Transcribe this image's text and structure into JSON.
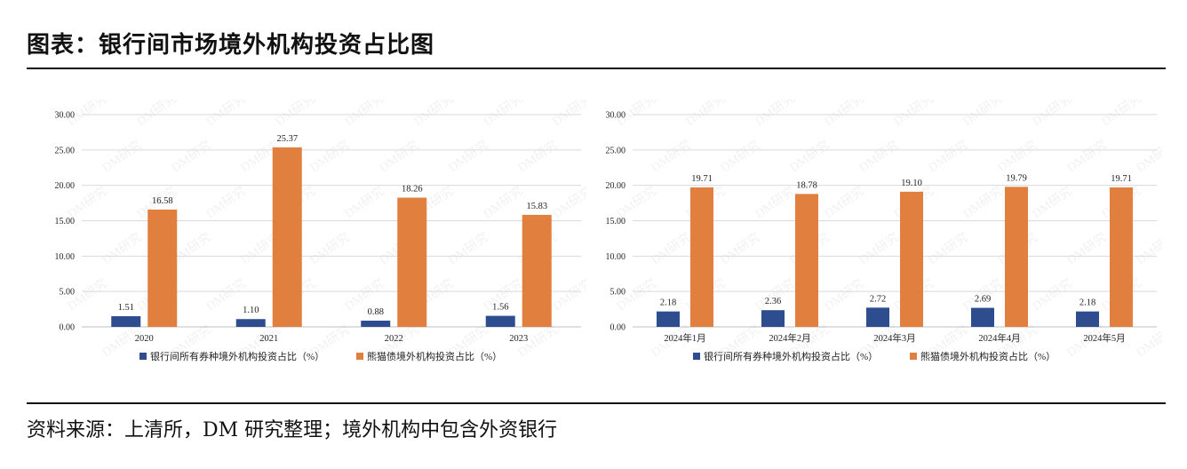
{
  "title": "图表：银行间市场境外机构投资占比图",
  "source": "资料来源：上清所，DM 研究整理；境外机构中包含外资银行",
  "watermark": "DM研究",
  "colors": {
    "series1": "#2e4d8f",
    "series2": "#e07f3e",
    "grid": "#d9d9d9",
    "axis": "#bfbfbf"
  },
  "chart_data": [
    {
      "type": "bar",
      "categories": [
        "2020",
        "2021",
        "2022",
        "2023"
      ],
      "series": [
        {
          "name": "银行间所有券种境外机构投资占比（%）",
          "values": [
            1.51,
            1.1,
            0.88,
            1.56
          ],
          "labels": [
            "1.51",
            "1.10",
            "0.88",
            "1.56"
          ]
        },
        {
          "name": "熊猫债境外机构投资占比（%）",
          "values": [
            16.58,
            25.37,
            18.26,
            15.83
          ],
          "labels": [
            "16.58",
            "25.37",
            "18.26",
            "15.83"
          ]
        }
      ],
      "yticks": [
        "0.00",
        "5.00",
        "10.00",
        "15.00",
        "20.00",
        "25.00",
        "30.00"
      ],
      "ylim": [
        0,
        30
      ],
      "grid": true,
      "legend": "bottom"
    },
    {
      "type": "bar",
      "categories": [
        "2024年1月",
        "2024年2月",
        "2024年3月",
        "2024年4月",
        "2024年5月"
      ],
      "series": [
        {
          "name": "银行间所有券种境外机构投资占比（%）",
          "values": [
            2.18,
            2.36,
            2.72,
            2.69,
            2.18
          ],
          "labels": [
            "2.18",
            "2.36",
            "2.72",
            "2.69",
            "2.18"
          ]
        },
        {
          "name": "熊猫债境外机构投资占比（%）",
          "values": [
            19.71,
            18.78,
            19.1,
            19.79,
            19.71
          ],
          "labels": [
            "19.71",
            "18.78",
            "19.10",
            "19.79",
            "19.71"
          ]
        }
      ],
      "yticks": [
        "0.00",
        "5.00",
        "10.00",
        "15.00",
        "20.00",
        "25.00",
        "30.00"
      ],
      "ylim": [
        0,
        30
      ],
      "grid": true,
      "legend": "bottom"
    }
  ]
}
